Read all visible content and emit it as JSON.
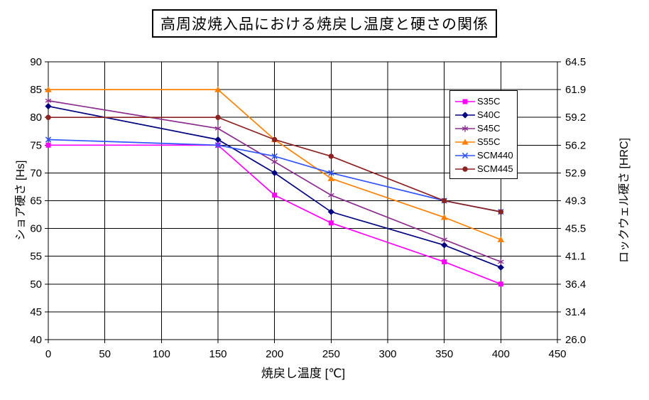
{
  "title": "高周波焼入品における焼戻し温度と硬さの関係",
  "chart_data": {
    "type": "line",
    "title": "高周波焼入品における焼戻し温度と硬さの関係",
    "xlabel": "焼戻し温度 [℃]",
    "ylabel_left": "ショア硬さ [Hs]",
    "ylabel_right": "ロックウェル硬さ [HRC]",
    "xlim": [
      0,
      450
    ],
    "ylim_left": [
      40,
      90
    ],
    "grid": true,
    "legend_position": "inside-upper-right",
    "x_ticks": [
      0,
      50,
      100,
      150,
      200,
      250,
      300,
      350,
      400,
      450
    ],
    "y_ticks_left": [
      40,
      45,
      50,
      55,
      60,
      65,
      70,
      75,
      80,
      85,
      90
    ],
    "y_ticks_right": [
      "26.0",
      "31.4",
      "36.4",
      "41.1",
      "45.5",
      "49.3",
      "52.9",
      "56.2",
      "59.2",
      "61.9",
      "64.5"
    ],
    "x": [
      0,
      150,
      200,
      250,
      350,
      400
    ],
    "series": [
      {
        "name": "S35C",
        "color": "#FF00FF",
        "marker": "square",
        "values": [
          75,
          75,
          66,
          61,
          54,
          50
        ]
      },
      {
        "name": "S40C",
        "color": "#000080",
        "marker": "diamond",
        "values": [
          82,
          76,
          70,
          63,
          57,
          53
        ]
      },
      {
        "name": "S45C",
        "color": "#8B2F8F",
        "marker": "asterisk",
        "values": [
          83,
          78,
          72,
          66,
          58,
          54
        ]
      },
      {
        "name": "S55C",
        "color": "#FF8000",
        "marker": "triangle",
        "values": [
          85,
          85,
          76,
          69,
          62,
          58
        ]
      },
      {
        "name": "SCM440",
        "color": "#3355FF",
        "marker": "x",
        "values": [
          76,
          75,
          73,
          70,
          65,
          63
        ]
      },
      {
        "name": "SCM445",
        "color": "#8B2323",
        "marker": "circle",
        "values": [
          80,
          80,
          76,
          73,
          65,
          63
        ]
      }
    ],
    "axis_color": "#000000",
    "background": "#FFFFFF"
  }
}
